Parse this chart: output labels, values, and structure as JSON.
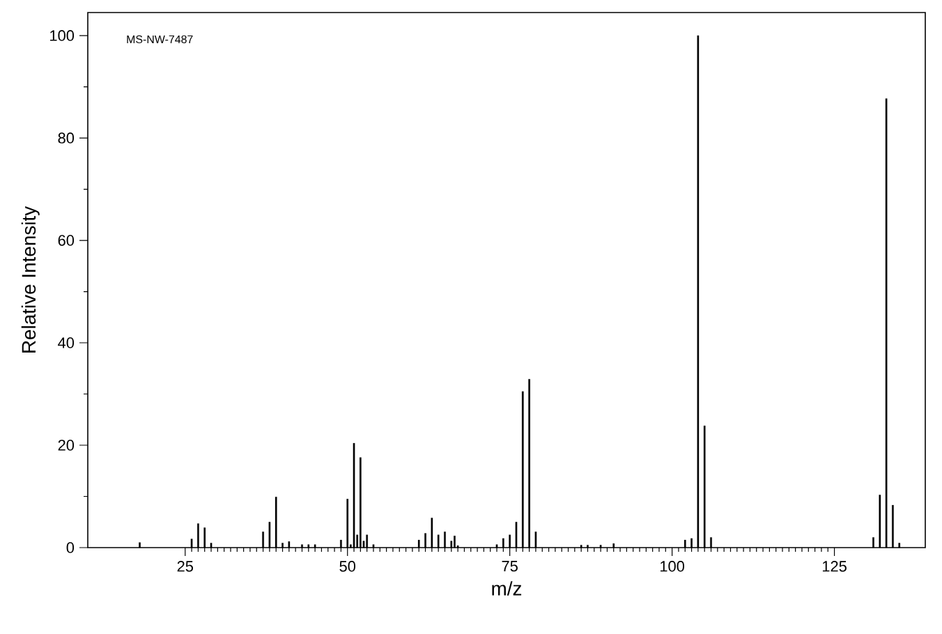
{
  "chart_data": {
    "type": "bar",
    "xlabel": "m/z",
    "ylabel": "Relative Intensity",
    "annotations": [
      "MS-NW-7487"
    ],
    "x": [
      18,
      26,
      27,
      28,
      29,
      37,
      38,
      39,
      40,
      41,
      43,
      44,
      45,
      49,
      50,
      50.5,
      51,
      51.5,
      52,
      52.5,
      53,
      54,
      61,
      62,
      63,
      64,
      65,
      66,
      66.5,
      67,
      73,
      74,
      75,
      76,
      77,
      78,
      79,
      86,
      87,
      89,
      91,
      102,
      103,
      104,
      105,
      106,
      131,
      132,
      133,
      134,
      135
    ],
    "values": [
      1,
      1.7,
      4.7,
      3.9,
      0.9,
      3.1,
      5.0,
      9.9,
      0.9,
      1.2,
      0.6,
      0.6,
      0.6,
      1.5,
      9.5,
      0.6,
      20.4,
      2.5,
      17.6,
      1.3,
      2.5,
      0.6,
      1.5,
      2.8,
      5.8,
      2.5,
      3.1,
      1.3,
      2.3,
      0.4,
      0.6,
      1.8,
      2.5,
      5.0,
      30.5,
      32.9,
      3.1,
      0.5,
      0.5,
      0.5,
      0.8,
      1.5,
      1.8,
      100,
      23.8,
      2.0,
      2.0,
      10.3,
      87.7,
      8.3,
      0.9
    ],
    "color": "#000000",
    "xlim": [
      10,
      139
    ],
    "ylim": [
      0,
      104.5
    ],
    "xticks": [
      25,
      50,
      75,
      100,
      125
    ],
    "yticks": [
      0,
      20,
      40,
      60,
      80,
      100
    ]
  }
}
